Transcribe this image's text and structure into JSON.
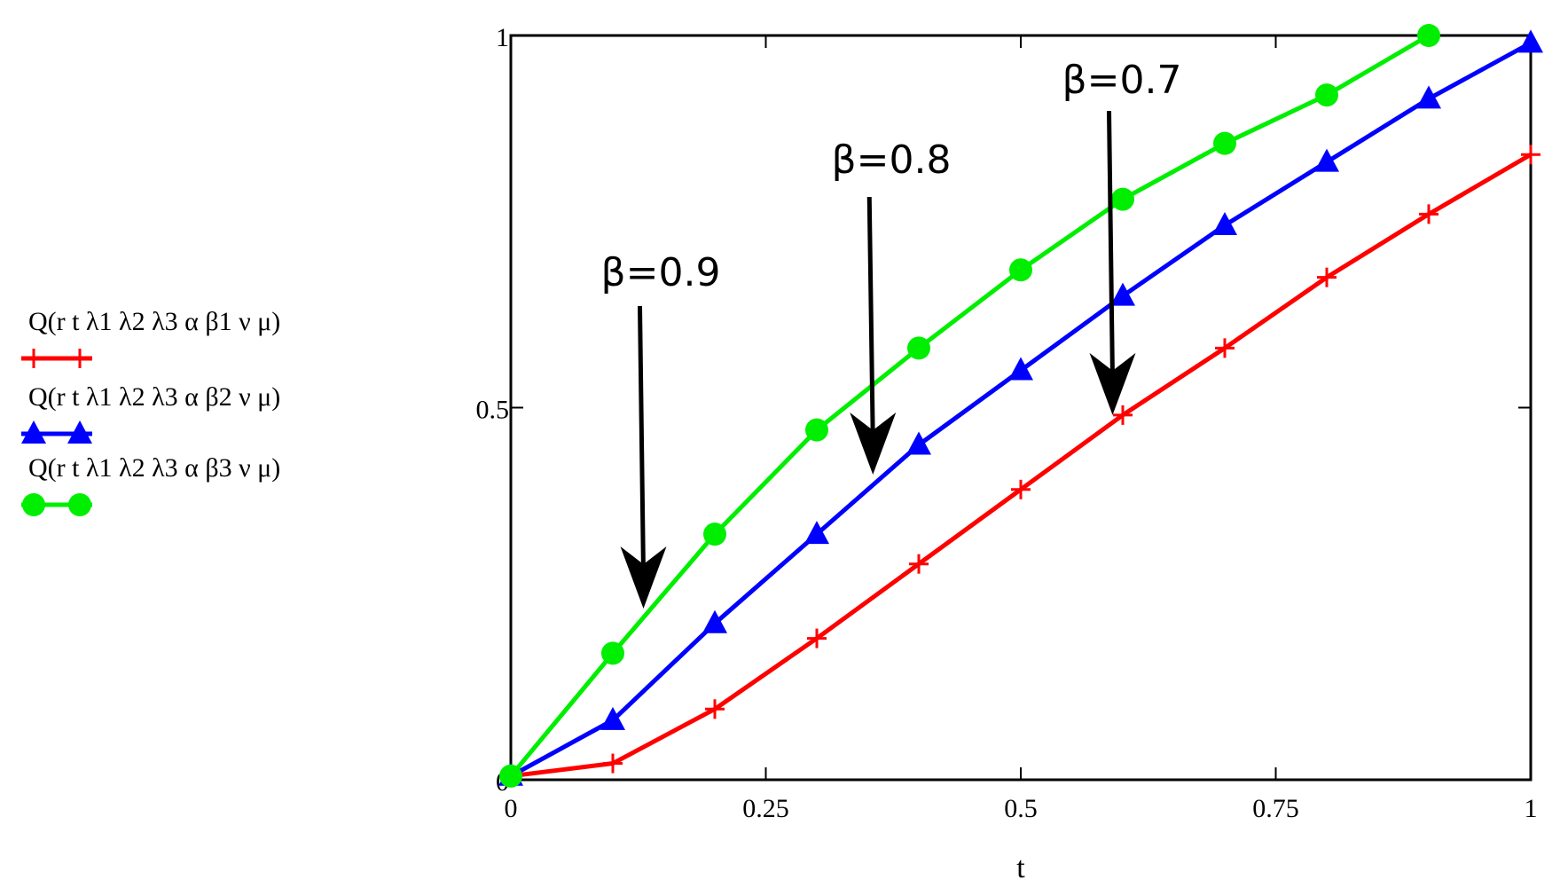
{
  "chart_data": {
    "type": "line",
    "title": "",
    "xlabel": "t",
    "ylabel": "",
    "xlim": [
      0,
      1
    ],
    "ylim": [
      0,
      1
    ],
    "x_ticks": [
      "0",
      "0.25",
      "0.5",
      "0.75",
      "1"
    ],
    "y_ticks": [
      "0",
      "0.5",
      "1"
    ],
    "grid": false,
    "legend_position": "left",
    "x": [
      0,
      0.1,
      0.2,
      0.3,
      0.4,
      0.5,
      0.6,
      0.7,
      0.8,
      0.9,
      1.0
    ],
    "series": [
      {
        "name": "Q(r  t  λ1  λ2  λ3  α  β1  ν  μ)",
        "color": "#ff0000",
        "marker": "plus",
        "values": [
          0.005,
          0.022,
          0.095,
          0.19,
          0.29,
          0.39,
          0.49,
          0.58,
          0.675,
          0.76,
          0.84
        ]
      },
      {
        "name": "Q(r  t  λ1  λ2  λ3  α  β2  ν  μ)",
        "color": "#0000ff",
        "marker": "triangle",
        "values": [
          0.005,
          0.08,
          0.21,
          0.33,
          0.45,
          0.55,
          0.65,
          0.745,
          0.83,
          0.915,
          0.99
        ]
      },
      {
        "name": "Q(r  t  λ1  λ2  λ3  α  β3  ν  μ)",
        "color": "#00ee00",
        "marker": "circle",
        "values": [
          0.005,
          0.17,
          0.33,
          0.47,
          0.58,
          0.685,
          0.78,
          0.855,
          0.92,
          1.0,
          null
        ]
      }
    ],
    "annotations": [
      {
        "text": "β=0.9",
        "points_to": [
          0.13,
          0.23
        ]
      },
      {
        "text": "β=0.8",
        "points_to": [
          0.355,
          0.41
        ]
      },
      {
        "text": "β=0.7",
        "points_to": [
          0.59,
          0.49
        ]
      }
    ]
  }
}
